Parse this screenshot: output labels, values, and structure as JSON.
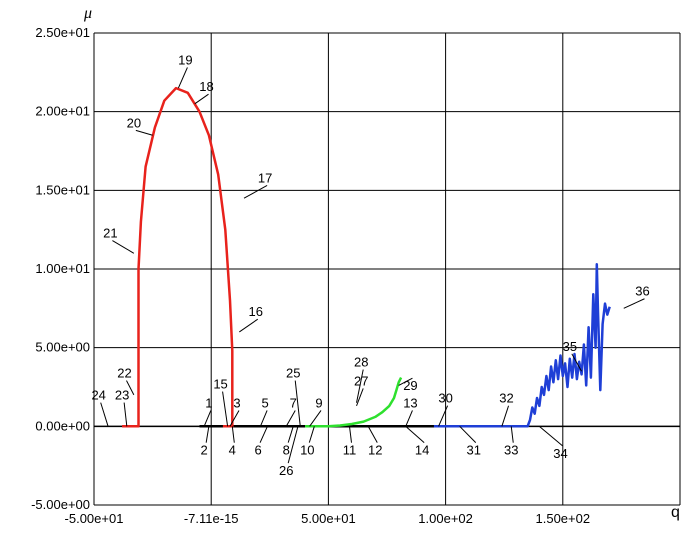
{
  "chart_data": {
    "type": "line",
    "title": "",
    "xlabel": "q",
    "ylabel": "μ",
    "xlim": [
      -50,
      200
    ],
    "ylim": [
      -5,
      25
    ],
    "grid": true,
    "x_ticks": [
      {
        "value": -50,
        "label": "-5.00e+01"
      },
      {
        "value": 0,
        "label": "-7.11e-15"
      },
      {
        "value": 50,
        "label": "5.00e+01"
      },
      {
        "value": 100,
        "label": "1.00e+02"
      },
      {
        "value": 150,
        "label": "1.50e+02"
      }
    ],
    "y_ticks": [
      {
        "value": 25,
        "label": "2.50e+01"
      },
      {
        "value": 20,
        "label": "2.00e+01"
      },
      {
        "value": 15,
        "label": "1.50e+01"
      },
      {
        "value": 10,
        "label": "1.00e+01"
      },
      {
        "value": 5,
        "label": "5.00e+00"
      },
      {
        "value": 0,
        "label": "0.00e+00"
      },
      {
        "value": -5,
        "label": "-5.00e+00"
      }
    ],
    "series": [
      {
        "color": "#000000",
        "points": [
          [
            -5,
            0
          ],
          [
            0,
            0
          ],
          [
            10,
            0
          ],
          [
            20,
            0
          ],
          [
            30,
            0
          ],
          [
            40,
            0
          ],
          [
            50,
            0
          ],
          [
            60,
            0
          ],
          [
            70,
            0
          ],
          [
            80,
            0
          ],
          [
            90,
            0
          ],
          [
            100,
            0
          ],
          [
            110,
            0
          ],
          [
            120,
            0
          ],
          [
            130,
            0
          ]
        ]
      },
      {
        "color": "#e8221c",
        "points": [
          [
            -38,
            0
          ],
          [
            -33,
            0
          ],
          [
            -31,
            0
          ],
          [
            -31,
            10
          ],
          [
            -30,
            13
          ],
          [
            -28,
            16.5
          ],
          [
            -24,
            19
          ],
          [
            -20,
            20.7
          ],
          [
            -15,
            21.5
          ],
          [
            -10,
            21.2
          ],
          [
            -5,
            20
          ],
          [
            -1,
            18.5
          ],
          [
            3,
            16
          ],
          [
            6,
            12.5
          ],
          [
            8,
            8
          ],
          [
            9,
            4.8
          ],
          [
            9,
            0
          ],
          [
            8,
            0
          ],
          [
            5,
            0
          ]
        ]
      },
      {
        "color": "#2ee02e",
        "points": [
          [
            40,
            0
          ],
          [
            50,
            0
          ],
          [
            55,
            0.05
          ],
          [
            60,
            0.15
          ],
          [
            65,
            0.3
          ],
          [
            70,
            0.6
          ],
          [
            73,
            0.9
          ],
          [
            76,
            1.3
          ],
          [
            78,
            1.8
          ],
          [
            79,
            2.3
          ],
          [
            80,
            2.8
          ],
          [
            81,
            3.1
          ]
        ]
      },
      {
        "color": "#1f3fd6",
        "points": [
          [
            95,
            0
          ],
          [
            110,
            0
          ],
          [
            125,
            0
          ],
          [
            135,
            0
          ],
          [
            136,
            0.4
          ],
          [
            137,
            1.2
          ],
          [
            138,
            0.8
          ],
          [
            139,
            1.8
          ],
          [
            140,
            1.3
          ],
          [
            141,
            2.5
          ],
          [
            142,
            2
          ],
          [
            143,
            3.2
          ],
          [
            144,
            2.3
          ],
          [
            145,
            3.8
          ],
          [
            146,
            2.8
          ],
          [
            147,
            4.2
          ],
          [
            148,
            3
          ],
          [
            149,
            4.5
          ],
          [
            150,
            3.2
          ],
          [
            151,
            4
          ],
          [
            152,
            2.5
          ],
          [
            153,
            4.3
          ],
          [
            154,
            3.1
          ],
          [
            155,
            4.6
          ],
          [
            156,
            3
          ],
          [
            157,
            4.1
          ],
          [
            158,
            3.3
          ],
          [
            159,
            5.2
          ],
          [
            160,
            2.6
          ],
          [
            161,
            6.3
          ],
          [
            162,
            3.1
          ],
          [
            163,
            8.4
          ],
          [
            164,
            5
          ],
          [
            164.5,
            10.3
          ],
          [
            165,
            7.3
          ],
          [
            166,
            2.3
          ],
          [
            167,
            6.5
          ],
          [
            168,
            7.8
          ],
          [
            169,
            7.1
          ],
          [
            170,
            7.6
          ]
        ]
      }
    ],
    "point_labels": [
      {
        "text": "1",
        "x": -1,
        "y": 1.2,
        "lx": -3,
        "ly": 0
      },
      {
        "text": "2",
        "x": -3,
        "y": -1.8,
        "lx": -1,
        "ly": 0
      },
      {
        "text": "3",
        "x": 11,
        "y": 1.2,
        "lx": 8,
        "ly": 0
      },
      {
        "text": "4",
        "x": 9,
        "y": -1.8,
        "lx": 9,
        "ly": 0
      },
      {
        "text": "5",
        "x": 23,
        "y": 1.2,
        "lx": 21,
        "ly": 0
      },
      {
        "text": "6",
        "x": 20,
        "y": -1.8,
        "lx": 24,
        "ly": 0
      },
      {
        "text": "7",
        "x": 35,
        "y": 1.2,
        "lx": 32,
        "ly": 0
      },
      {
        "text": "8",
        "x": 32,
        "y": -1.8,
        "lx": 35,
        "ly": 0
      },
      {
        "text": "9",
        "x": 46,
        "y": 1.2,
        "lx": 42,
        "ly": 0
      },
      {
        "text": "10",
        "x": 41,
        "y": -1.8,
        "lx": 44,
        "ly": 0
      },
      {
        "text": "11",
        "x": 59,
        "y": -1.8,
        "lx": 59,
        "ly": 0
      },
      {
        "text": "12",
        "x": 70,
        "y": -1.8,
        "lx": 67,
        "ly": 0
      },
      {
        "text": "13",
        "x": 85,
        "y": 1.2,
        "lx": 83,
        "ly": 0
      },
      {
        "text": "14",
        "x": 90,
        "y": -1.8,
        "lx": 83,
        "ly": 0
      },
      {
        "text": "15",
        "x": 4,
        "y": 2.4,
        "lx": 7,
        "ly": 0
      },
      {
        "text": "16",
        "x": 19,
        "y": 7,
        "lx": 12,
        "ly": 6
      },
      {
        "text": "17",
        "x": 23,
        "y": 15.5,
        "lx": 14,
        "ly": 14.5
      },
      {
        "text": "18",
        "x": -2,
        "y": 21.3,
        "lx": -7,
        "ly": 20.5
      },
      {
        "text": "19",
        "x": -11,
        "y": 23,
        "lx": -14,
        "ly": 21.5
      },
      {
        "text": "20",
        "x": -33,
        "y": 19,
        "lx": -25,
        "ly": 18.5
      },
      {
        "text": "21",
        "x": -43,
        "y": 12,
        "lx": -33,
        "ly": 11
      },
      {
        "text": "22",
        "x": -37,
        "y": 3.1,
        "lx": -33,
        "ly": 2
      },
      {
        "text": "23",
        "x": -38,
        "y": 1.7,
        "lx": -36,
        "ly": 0
      },
      {
        "text": "24",
        "x": -48,
        "y": 1.7,
        "lx": -44,
        "ly": 0
      },
      {
        "text": "25",
        "x": 35,
        "y": 3.1,
        "lx": 38,
        "ly": 0
      },
      {
        "text": "26",
        "x": 32,
        "y": -3.1,
        "lx": 37,
        "ly": 0
      },
      {
        "text": "27",
        "x": 64,
        "y": 2.6,
        "lx": 62,
        "ly": 1.3
      },
      {
        "text": "28",
        "x": 64,
        "y": 3.8,
        "lx": 62,
        "ly": 1.5
      },
      {
        "text": "29",
        "x": 85,
        "y": 2.3,
        "lx": 80,
        "ly": 2.6
      },
      {
        "text": "30",
        "x": 100,
        "y": 1.5,
        "lx": 97,
        "ly": 0
      },
      {
        "text": "31",
        "x": 112,
        "y": -1.8,
        "lx": 106,
        "ly": 0
      },
      {
        "text": "32",
        "x": 126,
        "y": 1.5,
        "lx": 124,
        "ly": 0
      },
      {
        "text": "33",
        "x": 128,
        "y": -1.8,
        "lx": 128,
        "ly": 0
      },
      {
        "text": "34",
        "x": 149,
        "y": -2.0,
        "lx": 140,
        "ly": 0
      },
      {
        "text": "35",
        "x": 153,
        "y": 4.8,
        "lx": 158,
        "ly": 3.5
      },
      {
        "text": "36",
        "x": 184,
        "y": 8.3,
        "lx": 176,
        "ly": 7.5
      }
    ]
  }
}
